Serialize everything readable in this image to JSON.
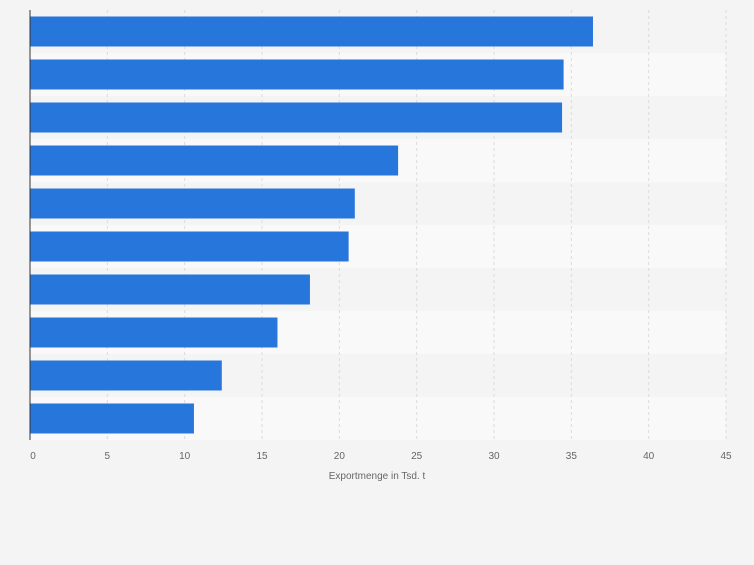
{
  "chart_data": {
    "type": "bar",
    "orientation": "horizontal",
    "categories": [
      "",
      "",
      "",
      "",
      "",
      "",
      "",
      "",
      "",
      ""
    ],
    "values": [
      36.4,
      34.5,
      34.4,
      23.8,
      21.0,
      20.6,
      18.1,
      16.0,
      12.4,
      10.6
    ],
    "xlabel": "Exportmenge in Tsd. t",
    "ylabel": "",
    "xlim": [
      0,
      45
    ],
    "ticks": [
      "0",
      "5",
      "10",
      "15",
      "20",
      "25",
      "30",
      "35",
      "40",
      "45"
    ],
    "grid": true,
    "bar_color": "#2776dc",
    "band_colors": [
      "#f4f4f4",
      "#f9f9f9"
    ]
  }
}
